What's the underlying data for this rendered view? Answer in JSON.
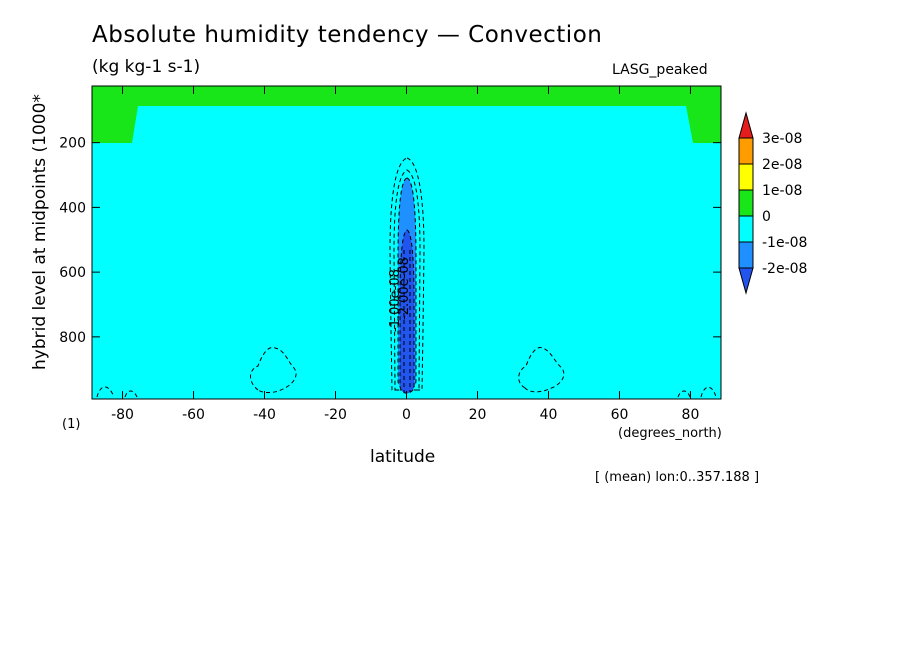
{
  "chart_data": {
    "type": "heatmap",
    "title": "Absolute humidity tendency — Convection",
    "units": "(kg kg-1 s-1)",
    "source_label": "LASG_peaked",
    "ylabel": "hybrid level at midpoints (1000*",
    "y_extra_label": "(1)",
    "xlabel": "latitude",
    "x_units": "(degrees_north)",
    "footer": "[ (mean) lon:0..357.188 ]",
    "xlim": [
      -88.6,
      88.6
    ],
    "ylim": [
      992,
      25
    ],
    "y_inverted": true,
    "x_ticks": [
      "-80",
      "-60",
      "-40",
      "-20",
      "0",
      "20",
      "40",
      "60",
      "80"
    ],
    "x_tick_values": [
      -80,
      -60,
      -40,
      -20,
      0,
      20,
      40,
      60,
      80
    ],
    "y_ticks": [
      "200",
      "400",
      "600",
      "800"
    ],
    "y_tick_values": [
      200,
      400,
      600,
      800
    ],
    "colorbar": {
      "labels": [
        "3e-08",
        "2e-08",
        "1e-08",
        "0",
        "-1e-08",
        "-2e-08"
      ],
      "levels": [
        3e-08,
        2e-08,
        1e-08,
        0,
        -1e-08,
        -2e-08
      ],
      "colors": [
        "#e51c1c",
        "#ff9c00",
        "#ffff00",
        "#19e619",
        "#00ffff",
        "#1e90ff",
        "#2255ee"
      ]
    },
    "contour_labels": [
      "-1.00e-08",
      "-2.00e-08"
    ],
    "regions": [
      {
        "name": "positive 0 to 1e-08 upper band",
        "color": "#19e619"
      },
      {
        "name": "negative 0 to -1e-08 background",
        "color": "#00ffff"
      },
      {
        "name": "equatorial convection core below -1e-08",
        "color": "#1e90ff"
      },
      {
        "name": "equatorial convection core below -2e-08",
        "color": "#2255ee"
      }
    ]
  }
}
